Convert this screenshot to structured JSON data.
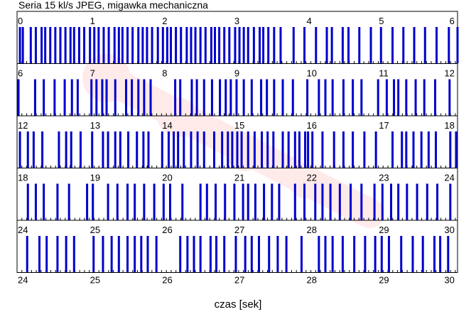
{
  "title": "Seria 15 kl/s JPEG, migawka mechaniczna",
  "colors": {
    "frame": "#0000cc",
    "tick": "#000000",
    "watermark": "#ff0000"
  },
  "chart_data": {
    "type": "event-timeline",
    "title": "Seria 15 kl/s JPEG, migawka mechaniczna",
    "xlabel": "czas [sek]",
    "ylabel": "",
    "grid": false,
    "tick_step": 0.0667,
    "rows": [
      {
        "range": [
          0,
          6.1
        ],
        "tick_labels": [
          "0",
          "1",
          "2",
          "3",
          "4",
          "5",
          "6"
        ],
        "frames": [
          0.04,
          0.08,
          0.19,
          0.26,
          0.34,
          0.39,
          0.46,
          0.53,
          0.6,
          0.67,
          0.74,
          0.79,
          0.86,
          0.93,
          1.01,
          1.07,
          1.13,
          1.2,
          1.27,
          1.35,
          1.41,
          1.46,
          1.53,
          1.6,
          1.68,
          1.74,
          1.8,
          1.87,
          1.95,
          2.02,
          2.08,
          2.13,
          2.2,
          2.27,
          2.35,
          2.41,
          2.47,
          2.54,
          2.61,
          2.69,
          2.74,
          2.8,
          2.87,
          2.94,
          3.02,
          3.08,
          3.14,
          3.2,
          3.28,
          3.36,
          3.41,
          3.48,
          3.56,
          3.65,
          3.83,
          3.98,
          4.14,
          4.29,
          4.36,
          4.51,
          4.59,
          4.74,
          4.9,
          5.04,
          5.2,
          5.35,
          5.5,
          5.65,
          5.81,
          5.98,
          6.1
        ]
      },
      {
        "range": [
          6,
          12.1
        ],
        "tick_labels": [
          "6",
          "7",
          "8",
          "9",
          "10",
          "11",
          "12"
        ],
        "frames": [
          6.02,
          6.25,
          6.37,
          6.52,
          6.66,
          6.76,
          6.84,
          7.03,
          7.1,
          7.18,
          7.24,
          7.36,
          7.51,
          7.59,
          7.68,
          7.76,
          7.85,
          8.19,
          8.26,
          8.42,
          8.49,
          8.59,
          8.7,
          8.81,
          8.89,
          8.96,
          9.04,
          9.14,
          9.25,
          9.38,
          9.46,
          9.56,
          9.68,
          9.82,
          10.02,
          10.18,
          10.27,
          10.37,
          10.52,
          10.65,
          10.77,
          11.0,
          11.12,
          11.22,
          11.28,
          11.39,
          11.52,
          11.64,
          11.79,
          11.99
        ]
      },
      {
        "range": [
          12,
          18.1
        ],
        "tick_labels": [
          "12",
          "13",
          "14",
          "15",
          "16",
          "17",
          "18"
        ],
        "frames": [
          12.04,
          12.15,
          12.23,
          12.35,
          12.58,
          12.68,
          12.75,
          12.88,
          13.04,
          13.19,
          13.26,
          13.36,
          13.43,
          13.54,
          13.66,
          13.75,
          13.82,
          14.01,
          14.1,
          14.17,
          14.23,
          14.31,
          14.41,
          14.5,
          14.59,
          14.73,
          14.84,
          14.92,
          14.98,
          15.05,
          15.11,
          15.2,
          15.29,
          15.39,
          15.47,
          15.55,
          15.68,
          15.76,
          15.85,
          15.91,
          15.99,
          16.03,
          16.09,
          16.23,
          16.39,
          16.52,
          16.65,
          16.81,
          16.97,
          17.2,
          17.33,
          17.39,
          17.49,
          17.6,
          17.7,
          17.8,
          18.0,
          18.08
        ]
      },
      {
        "range": [
          18,
          24.1
        ],
        "tick_labels": [
          "18",
          "19",
          "20",
          "21",
          "22",
          "23",
          "24"
        ],
        "frames": [
          18.15,
          18.26,
          18.37,
          18.56,
          18.72,
          18.97,
          19.05,
          19.26,
          19.39,
          19.53,
          19.63,
          19.76,
          19.9,
          20.03,
          20.12,
          20.29,
          20.54,
          20.63,
          20.75,
          20.88,
          21.01,
          21.13,
          21.2,
          21.3,
          21.42,
          21.53,
          21.63,
          21.85,
          21.98,
          22.13,
          22.23,
          22.34,
          22.47,
          22.62,
          22.77,
          22.95,
          23.06,
          23.18,
          23.28,
          23.4,
          23.54,
          23.68,
          23.82,
          24.0
        ]
      },
      {
        "range": [
          24,
          30.1
        ],
        "tick_labels": [
          "24",
          "25",
          "26",
          "27",
          "28",
          "29",
          "30"
        ],
        "frames": [
          24.14,
          24.31,
          24.41,
          24.56,
          24.68,
          24.79,
          25.06,
          25.19,
          25.31,
          25.41,
          25.53,
          25.63,
          25.72,
          25.81,
          25.93,
          26.26,
          26.36,
          26.45,
          26.54,
          26.68,
          26.76,
          26.87,
          27.03,
          27.16,
          27.25,
          27.35,
          27.49,
          27.61,
          27.73,
          27.94,
          28.18,
          28.27,
          28.37,
          28.51,
          28.67,
          28.82,
          28.96,
          29.05,
          29.15,
          29.32,
          29.48,
          29.62,
          29.78,
          29.86,
          29.97
        ]
      }
    ]
  }
}
